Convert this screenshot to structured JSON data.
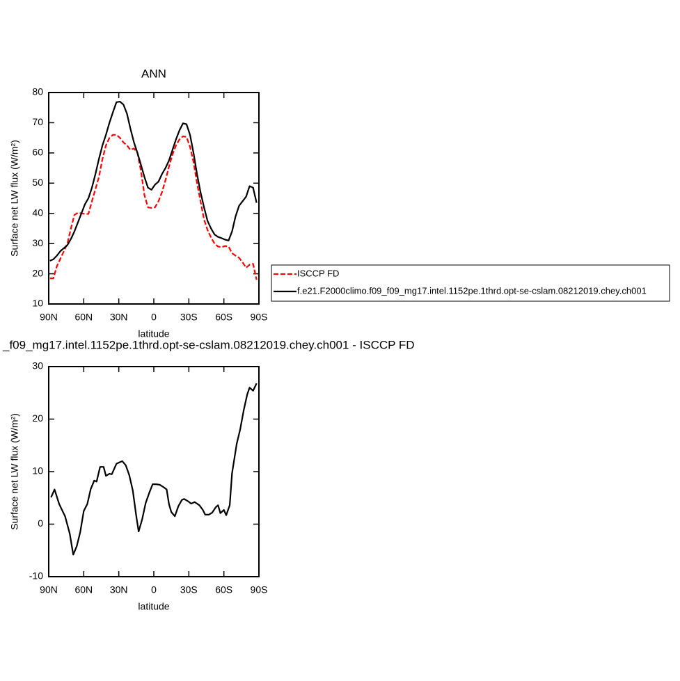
{
  "chart_data": [
    {
      "type": "line",
      "title": "ANN",
      "xlabel": "latitude",
      "ylabel": "Surface net LW flux (W/m²)",
      "legend": "right",
      "x": [
        89,
        86,
        83,
        80,
        77,
        74,
        71,
        68,
        65,
        62,
        59,
        56,
        53,
        50,
        47,
        44,
        41,
        38,
        35,
        32,
        29,
        26,
        23,
        20,
        17,
        14,
        11,
        8,
        5,
        2,
        -1,
        -4,
        -7,
        -10,
        -13,
        -16,
        -19,
        -22,
        -25,
        -28,
        -31,
        -34,
        -37,
        -40,
        -43,
        -46,
        -49,
        -52,
        -55,
        -58,
        -61,
        -64,
        -67,
        -70,
        -73,
        -76,
        -79,
        -82,
        -85,
        -88
      ],
      "series": [
        {
          "name": "ISCCP FD",
          "color": "#ff0000",
          "dash": true,
          "values": [
            18.5,
            18.5,
            22.5,
            25,
            27.5,
            30,
            35,
            39.5,
            40.2,
            40,
            39.8,
            39.8,
            44,
            48,
            52,
            58,
            62.5,
            65,
            66,
            66,
            65,
            63.5,
            62.5,
            61,
            61.5,
            60,
            54,
            46,
            42,
            41.8,
            42,
            44,
            47,
            51,
            55.5,
            59.5,
            62.5,
            64.5,
            65.5,
            65.3,
            62,
            57,
            50,
            44,
            38,
            34.5,
            32,
            30,
            29,
            28.8,
            29.2,
            29,
            26.8,
            26,
            25.3,
            23.8,
            22,
            23,
            23.3,
            18
          ]
        },
        {
          "name": "f.e21.F2000climo.f09_f09_mg17.intel.1152pe.1thrd.opt-se-cslam.08212019.chey.ch001",
          "color": "#000000",
          "dash": false,
          "values": [
            24.3,
            24.8,
            26,
            27.5,
            28.5,
            29.5,
            31.5,
            34,
            37,
            40,
            43,
            45,
            48.5,
            53,
            58,
            62.5,
            66,
            70,
            73.5,
            76.8,
            77,
            76,
            73,
            68,
            63.5,
            60,
            56,
            52,
            48.5,
            47.8,
            49.5,
            50.5,
            53,
            55,
            57.5,
            61,
            64.5,
            67.5,
            69.8,
            69.5,
            66,
            60,
            53,
            47,
            42,
            37.5,
            35,
            33,
            32.2,
            31.8,
            31.3,
            31,
            34,
            39,
            42.5,
            44,
            45.5,
            49,
            48.5,
            43.5
          ]
        }
      ],
      "xlim": [
        90,
        -90
      ],
      "xticks": [
        {
          "value": 90,
          "label": "90N"
        },
        {
          "value": 60,
          "label": "60N"
        },
        {
          "value": 30,
          "label": "30N"
        },
        0,
        {
          "value": -30,
          "label": "30S"
        },
        {
          "value": -60,
          "label": "60S"
        },
        {
          "value": -90,
          "label": "90S"
        }
      ],
      "ylim": [
        10,
        80
      ],
      "yticks": [
        10,
        20,
        30,
        40,
        50,
        60,
        70,
        80
      ]
    },
    {
      "type": "line",
      "title": "_f09_mg17.intel.1152pe.1thrd.opt-se-cslam.08212019.chey.ch001 - ISCCP FD",
      "xlabel": "latitude",
      "ylabel": "Surface net LW flux (W/m²)",
      "color": "#000000",
      "x": [
        88,
        85,
        81,
        76,
        72,
        69,
        66,
        63,
        60,
        57,
        54,
        51,
        49,
        46,
        43,
        41,
        38,
        36,
        32,
        27,
        24,
        21,
        18,
        15,
        13,
        10,
        7,
        4,
        1,
        -2,
        -5,
        -8,
        -11,
        -13,
        -15,
        -18,
        -21,
        -24,
        -26,
        -29,
        -32,
        -35,
        -39,
        -42,
        -44,
        -47,
        -50,
        -53,
        -55,
        -57,
        -60,
        -62,
        -65,
        -67,
        -71,
        -74,
        -77,
        -80,
        -82,
        -85,
        -88
      ],
      "values": [
        5.1,
        6.6,
        3.8,
        1.5,
        -1.8,
        -5.8,
        -4.2,
        -1.5,
        2.5,
        3.8,
        6.7,
        8.3,
        8.1,
        10.9,
        10.9,
        9.2,
        9.6,
        9.5,
        11.5,
        12,
        11.2,
        9.3,
        6.4,
        1.5,
        -1.4,
        0.9,
        4,
        5.9,
        7.6,
        7.6,
        7.5,
        7.1,
        6.6,
        3.8,
        2.3,
        1.5,
        3.4,
        4.6,
        4.8,
        4.4,
        3.9,
        4.2,
        3.6,
        2.7,
        1.8,
        1.8,
        2.2,
        3.2,
        3.6,
        2.1,
        2.7,
        1.7,
        3.6,
        9.7,
        15.3,
        18.1,
        21.7,
        24.7,
        26,
        25.4,
        26.8
      ],
      "xlim": [
        90,
        -90
      ],
      "xticks": [
        {
          "value": 90,
          "label": "90N"
        },
        {
          "value": 60,
          "label": "60N"
        },
        {
          "value": 30,
          "label": "30N"
        },
        0,
        {
          "value": -30,
          "label": "30S"
        },
        {
          "value": -60,
          "label": "60S"
        },
        {
          "value": -90,
          "label": "90S"
        }
      ],
      "ylim": [
        -10,
        30
      ],
      "yticks": [
        -10,
        0,
        10,
        20,
        30
      ]
    }
  ]
}
